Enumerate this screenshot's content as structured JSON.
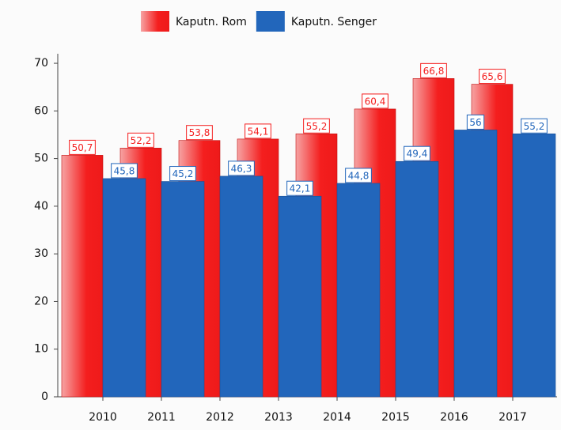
{
  "chart_data": {
    "type": "bar",
    "categories": [
      "2010",
      "2011",
      "2012",
      "2013",
      "2014",
      "2015",
      "2016",
      "2017"
    ],
    "series": [
      {
        "name": "Kaputn. Rom",
        "color": "#f41e1e",
        "values": [
          50.7,
          52.2,
          53.8,
          54.1,
          55.2,
          60.4,
          66.8,
          65.6
        ],
        "value_labels": [
          "50,7",
          "52,2",
          "53,8",
          "54,1",
          "55,2",
          "60,4",
          "66,8",
          "65,6"
        ]
      },
      {
        "name": "Kaputn. Senger",
        "color": "#2266bb",
        "values": [
          45.8,
          45.2,
          46.3,
          42.1,
          44.8,
          49.4,
          56,
          55.2
        ],
        "value_labels": [
          "45,8",
          "45,2",
          "46,3",
          "42,1",
          "44,8",
          "49,4",
          "56",
          "55,2"
        ]
      }
    ],
    "ylim": [
      0,
      72
    ],
    "yticks": [
      0,
      10,
      20,
      30,
      40,
      50,
      60,
      70
    ],
    "legend": "top"
  }
}
